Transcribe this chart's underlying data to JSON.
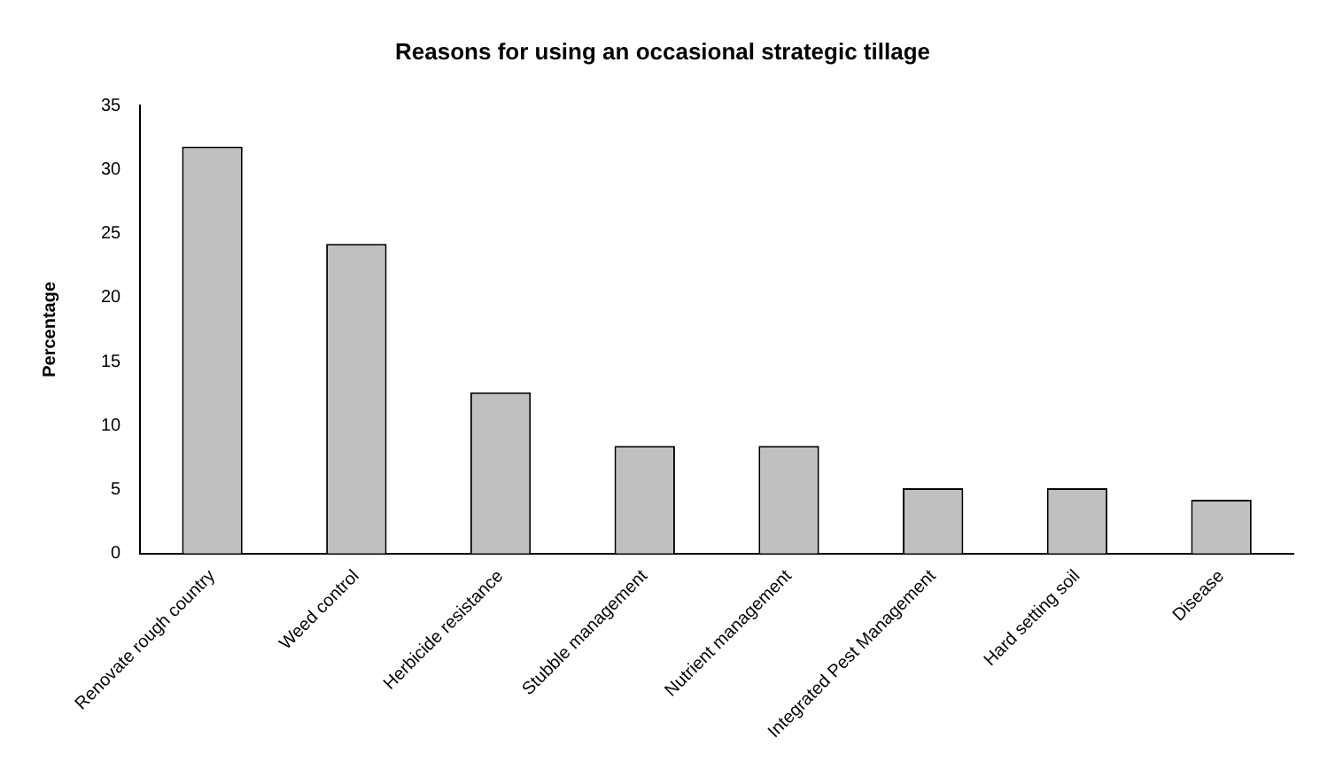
{
  "chart_data": {
    "type": "bar",
    "title": "Reasons for using an occasional strategic tillage",
    "ylabel": "Percentage",
    "categories": [
      "Renovate rough country",
      "Weed control",
      "Herbicide resistance",
      "Stubble management",
      "Nutrient management",
      "Integrated Pest Management",
      "Hard setting soil",
      "Disease"
    ],
    "values": [
      31.8,
      24.2,
      12.6,
      8.4,
      8.4,
      5.1,
      5.1,
      4.2
    ],
    "color": "#c0c0c0",
    "ylim": [
      0,
      35
    ],
    "yticks": [
      0,
      5,
      10,
      15,
      20,
      25,
      30,
      35
    ],
    "grid": false,
    "legend": false
  }
}
